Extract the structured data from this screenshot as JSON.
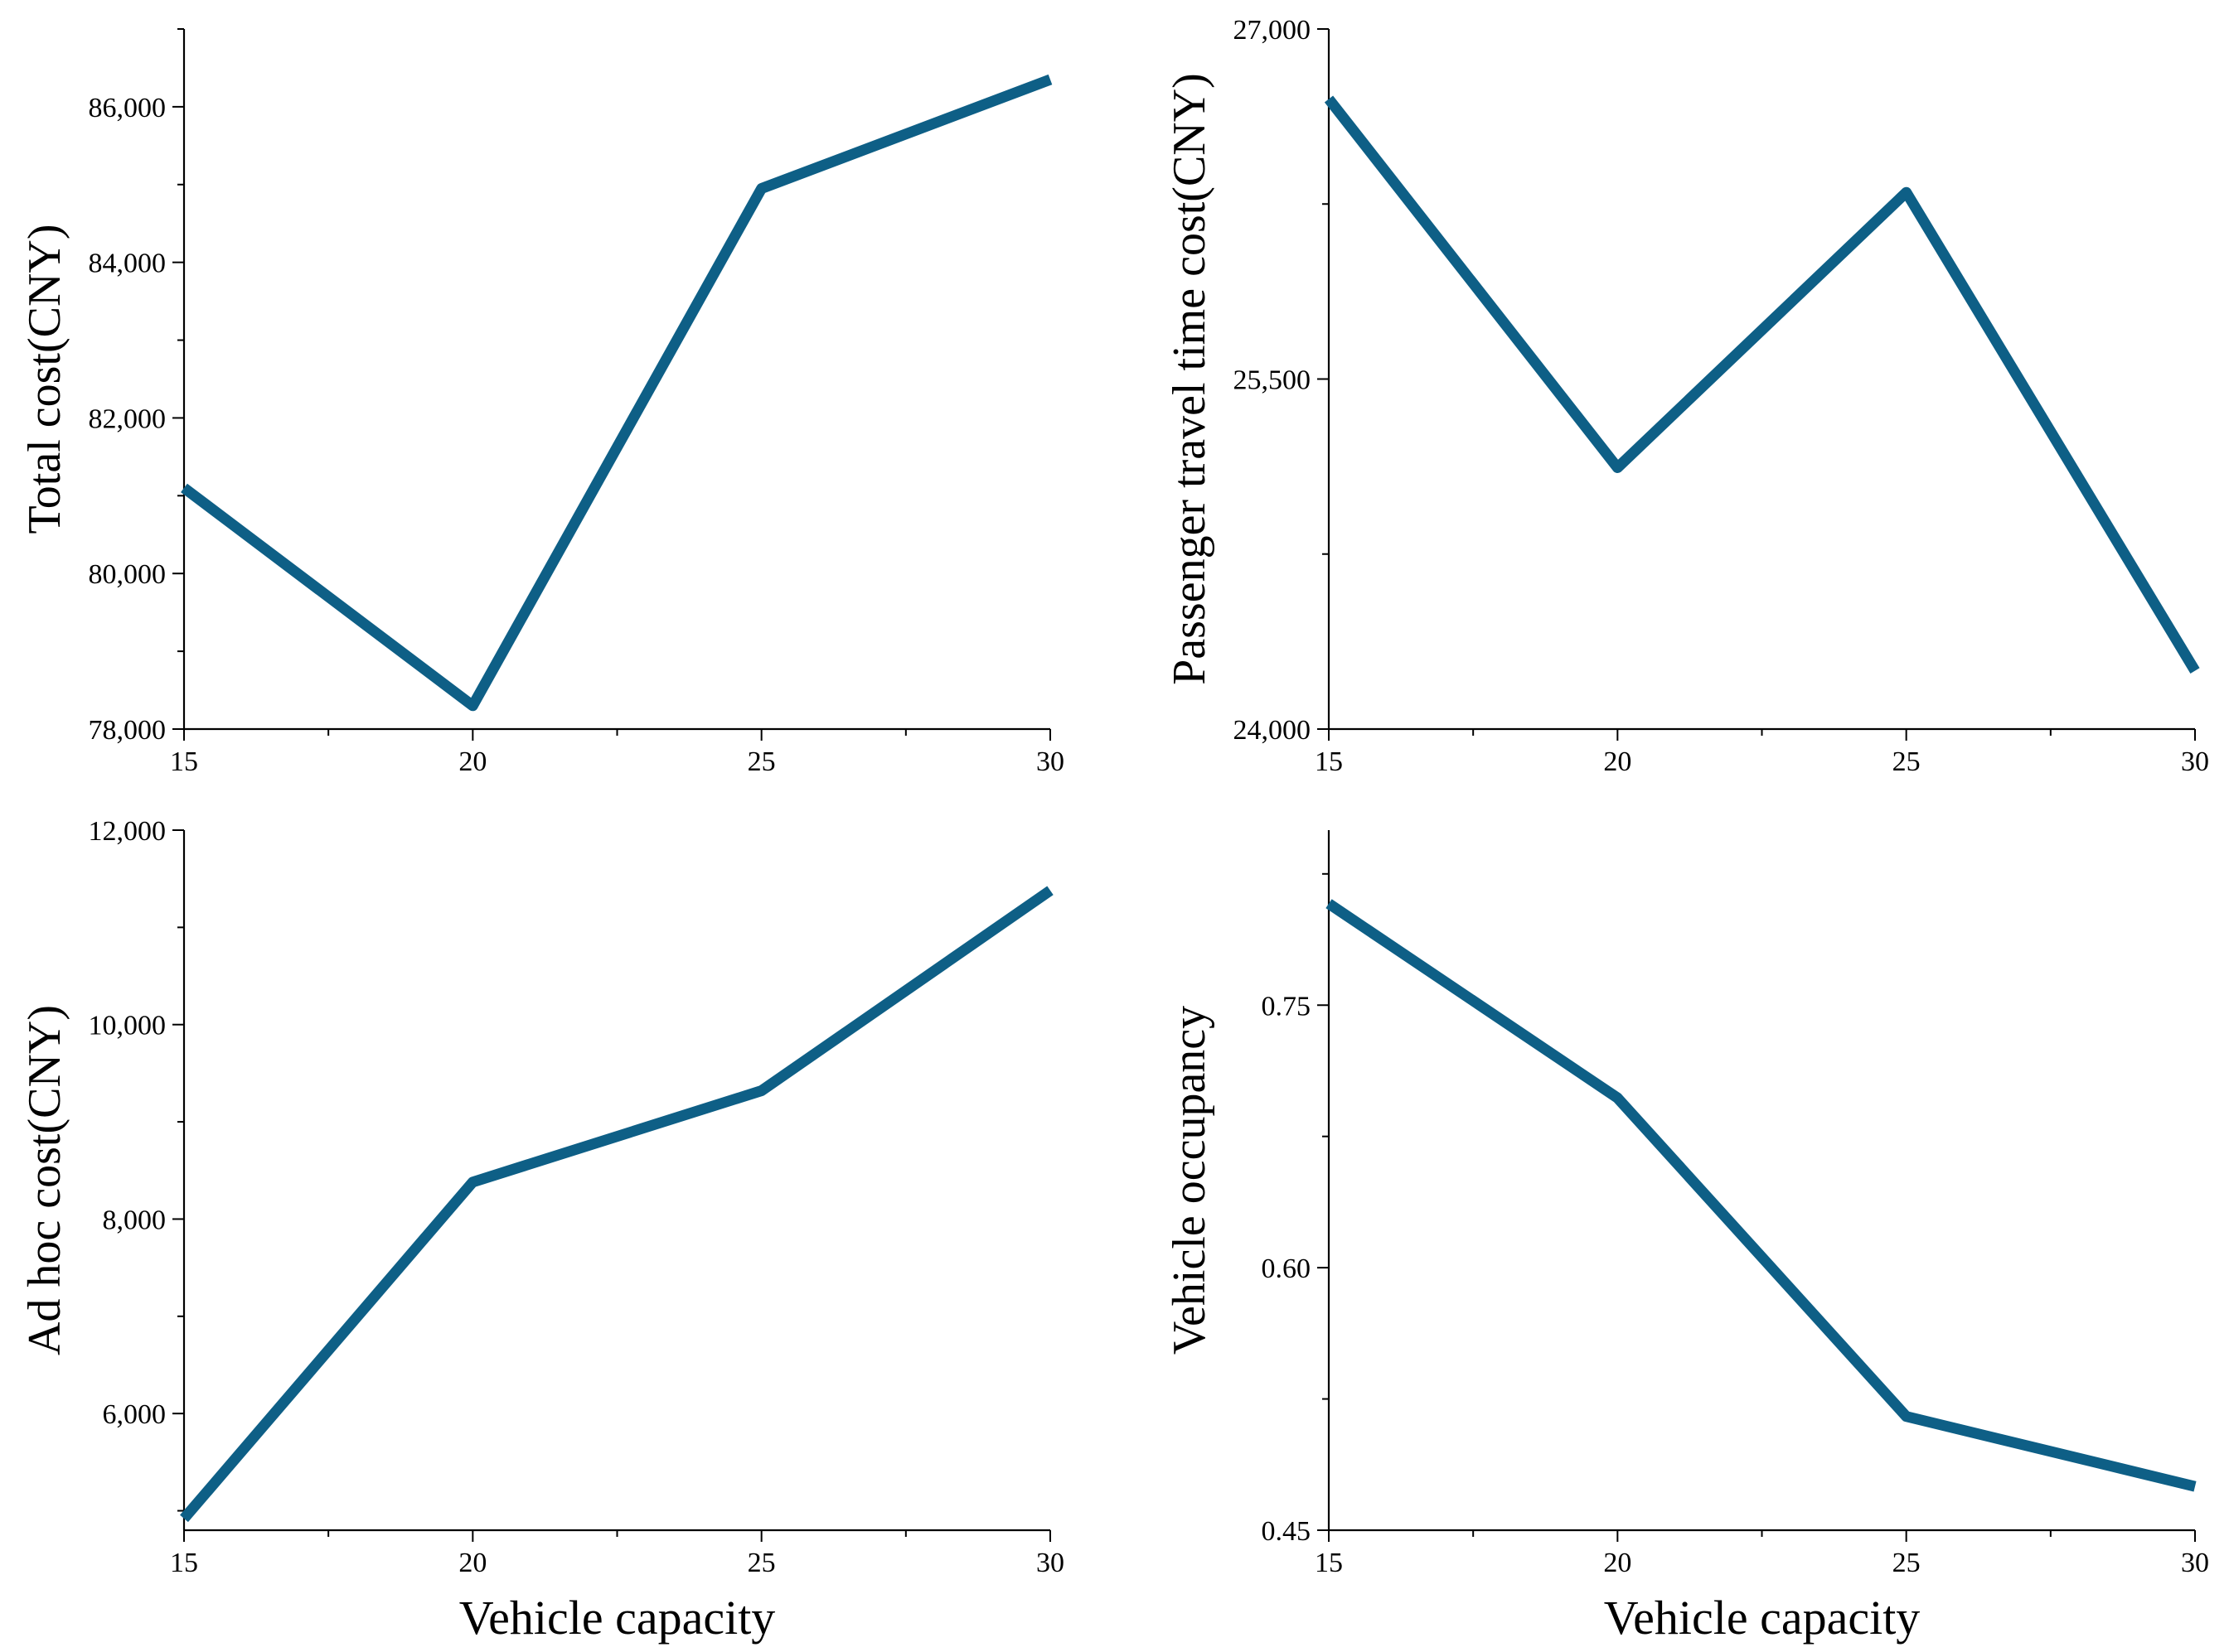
{
  "chart_data": [
    {
      "type": "line",
      "title": "",
      "xlabel": "",
      "ylabel": "Total cost(CNY)",
      "x": [
        15,
        20,
        25,
        30
      ],
      "series": [
        {
          "name": "Total cost",
          "values": [
            81100,
            78300,
            84950,
            86350
          ]
        }
      ],
      "xlim": [
        15,
        30
      ],
      "ylim": [
        78000,
        87000
      ],
      "xticks": [
        15,
        20,
        25,
        30
      ],
      "xtick_labels": [
        "15",
        "20",
        "25",
        "30"
      ],
      "yticks": [
        78000,
        80000,
        82000,
        84000,
        86000
      ],
      "ytick_labels": [
        "78,000",
        "80,000",
        "82,000",
        "84,000",
        "86,000"
      ],
      "color": "#0e5f86"
    },
    {
      "type": "line",
      "title": "",
      "xlabel": "",
      "ylabel": "Passenger travel time cost(CNY)",
      "x": [
        15,
        20,
        25,
        30
      ],
      "series": [
        {
          "name": "Passenger travel time cost",
          "values": [
            26700,
            25120,
            26300,
            24250
          ]
        }
      ],
      "xlim": [
        15,
        30
      ],
      "ylim": [
        24000,
        27000
      ],
      "xticks": [
        15,
        20,
        25,
        30
      ],
      "xtick_labels": [
        "15",
        "20",
        "25",
        "30"
      ],
      "yticks": [
        24000,
        25500,
        27000
      ],
      "ytick_labels": [
        "24,000",
        "25,500",
        "27,000"
      ],
      "color": "#0e5f86"
    },
    {
      "type": "line",
      "title": "",
      "xlabel": "Vehicle capacity",
      "ylabel": "Ad hoc cost(CNY)",
      "x": [
        15,
        20,
        25,
        30
      ],
      "series": [
        {
          "name": "Ad hoc cost",
          "values": [
            4920,
            8380,
            9320,
            11380
          ]
        }
      ],
      "xlim": [
        15,
        30
      ],
      "ylim": [
        4800,
        12000
      ],
      "xticks": [
        15,
        20,
        25,
        30
      ],
      "xtick_labels": [
        "15",
        "20",
        "25",
        "30"
      ],
      "yticks": [
        6000,
        8000,
        10000,
        12000
      ],
      "ytick_labels": [
        "6,000",
        "8,000",
        "10,000",
        "12,000"
      ],
      "color": "#0e5f86"
    },
    {
      "type": "line",
      "title": "",
      "xlabel": "Vehicle capacity",
      "ylabel": "Vehicle occupancy",
      "x": [
        15,
        20,
        25,
        30
      ],
      "series": [
        {
          "name": "Vehicle occupancy",
          "values": [
            0.808,
            0.697,
            0.515,
            0.475
          ]
        }
      ],
      "xlim": [
        15,
        30
      ],
      "ylim": [
        0.45,
        0.85
      ],
      "xticks": [
        15,
        20,
        25,
        30
      ],
      "xtick_labels": [
        "15",
        "20",
        "25",
        "30"
      ],
      "yticks": [
        0.45,
        0.6,
        0.75
      ],
      "ytick_labels": [
        "0.45",
        "0.60",
        "0.75"
      ],
      "color": "#0e5f86"
    }
  ]
}
